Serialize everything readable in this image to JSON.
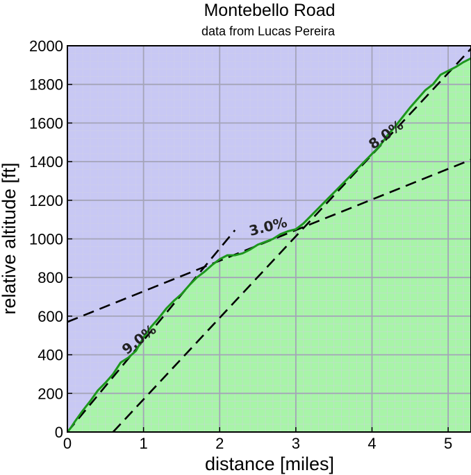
{
  "chart_data": {
    "type": "area",
    "title": "Montebello Road",
    "subtitle": "data from Lucas Pereira",
    "xlabel": "distance [miles]",
    "ylabel": "relative altitude [ft]",
    "xlim": [
      0,
      5.3
    ],
    "ylim": [
      0,
      2000
    ],
    "x_ticks": [
      "0",
      "1",
      "2",
      "3",
      "4",
      "5"
    ],
    "y_ticks": [
      "0",
      "200",
      "400",
      "600",
      "800",
      "1000",
      "1200",
      "1400",
      "1600",
      "1800",
      "2000"
    ],
    "grid": true,
    "colors": {
      "plot_background": "#c8c8f4",
      "minor_grid": "#d2d2e6",
      "major_grid": "#a4a4b8",
      "fill_below": "#a8f4a8",
      "profile_line": "#1c961c",
      "guide_lines": "#000000"
    },
    "series": [
      {
        "values": [
          [
            0.0,
            0
          ],
          [
            0.05,
            25
          ],
          [
            0.1,
            55
          ],
          [
            0.2,
            110
          ],
          [
            0.3,
            160
          ],
          [
            0.4,
            215
          ],
          [
            0.5,
            255
          ],
          [
            0.6,
            300
          ],
          [
            0.7,
            360
          ],
          [
            0.8,
            385
          ],
          [
            0.9,
            420
          ],
          [
            1.0,
            490
          ],
          [
            1.1,
            545
          ],
          [
            1.2,
            590
          ],
          [
            1.3,
            640
          ],
          [
            1.4,
            680
          ],
          [
            1.5,
            715
          ],
          [
            1.6,
            760
          ],
          [
            1.7,
            800
          ],
          [
            1.8,
            830
          ],
          [
            1.9,
            865
          ],
          [
            2.0,
            895
          ],
          [
            2.1,
            915
          ],
          [
            2.2,
            915
          ],
          [
            2.3,
            925
          ],
          [
            2.4,
            945
          ],
          [
            2.5,
            970
          ],
          [
            2.6,
            985
          ],
          [
            2.7,
            1000
          ],
          [
            2.8,
            1025
          ],
          [
            2.9,
            1040
          ],
          [
            3.0,
            1050
          ],
          [
            3.1,
            1080
          ],
          [
            3.2,
            1120
          ],
          [
            3.3,
            1160
          ],
          [
            3.4,
            1200
          ],
          [
            3.5,
            1240
          ],
          [
            3.6,
            1280
          ],
          [
            3.7,
            1320
          ],
          [
            3.8,
            1360
          ],
          [
            3.9,
            1400
          ],
          [
            4.0,
            1440
          ],
          [
            4.1,
            1480
          ],
          [
            4.2,
            1535
          ],
          [
            4.3,
            1580
          ],
          [
            4.4,
            1630
          ],
          [
            4.5,
            1680
          ],
          [
            4.6,
            1725
          ],
          [
            4.7,
            1770
          ],
          [
            4.8,
            1800
          ],
          [
            4.9,
            1850
          ],
          [
            5.0,
            1870
          ],
          [
            5.1,
            1890
          ],
          [
            5.2,
            1915
          ],
          [
            5.3,
            1935
          ]
        ]
      }
    ],
    "guide_lines": [
      {
        "label": "9.0%",
        "points": [
          [
            0.0,
            0
          ],
          [
            2.2,
            1045
          ]
        ]
      },
      {
        "label": "3.0%",
        "points": [
          [
            0.0,
            570
          ],
          [
            5.3,
            1410
          ]
        ]
      },
      {
        "label": "8.0%",
        "points": [
          [
            0.6,
            0
          ],
          [
            5.3,
            1985
          ]
        ]
      }
    ],
    "annotations": [
      {
        "text": "9.0%",
        "x": 0.98,
        "y": 460,
        "angle_deg": -38
      },
      {
        "text": "3.0%",
        "x": 2.65,
        "y": 1040,
        "angle_deg": -14
      },
      {
        "text": "8.0%",
        "x": 4.22,
        "y": 1520,
        "angle_deg": -36
      }
    ]
  }
}
